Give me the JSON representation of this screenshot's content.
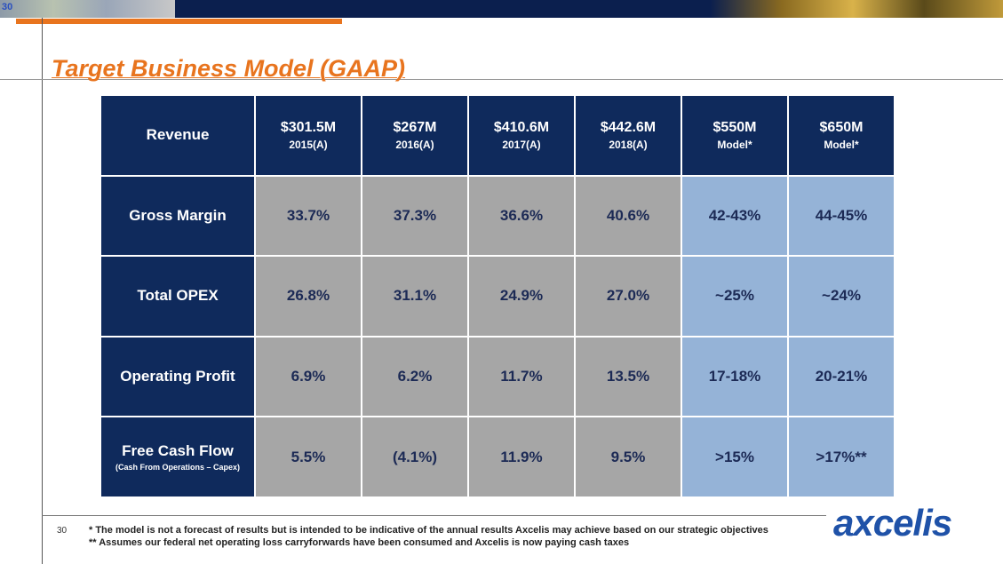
{
  "corner_number": "30",
  "title": "Target Business Model (GAAP)",
  "table": {
    "header": {
      "label": "Revenue",
      "columns": [
        {
          "value": "$301.5M",
          "period": "2015(A)"
        },
        {
          "value": "$267M",
          "period": "2016(A)"
        },
        {
          "value": "$410.6M",
          "period": "2017(A)"
        },
        {
          "value": "$442.6M",
          "period": "2018(A)"
        },
        {
          "value": "$550M",
          "period": "Model*"
        },
        {
          "value": "$650M",
          "period": "Model*"
        }
      ]
    },
    "rows": [
      {
        "label": "Gross Margin",
        "cells": [
          "33.7%",
          "37.3%",
          "36.6%",
          "40.6%",
          "42-43%",
          "44-45%"
        ]
      },
      {
        "label": "Total OPEX",
        "cells": [
          "26.8%",
          "31.1%",
          "24.9%",
          "27.0%",
          "~25%",
          "~24%"
        ]
      },
      {
        "label": "Operating Profit",
        "cells": [
          "6.9%",
          "6.2%",
          "11.7%",
          "13.5%",
          "17-18%",
          "20-21%"
        ]
      },
      {
        "label": "Free Cash Flow",
        "sublabel": "(Cash From Operations – Capex)",
        "cells": [
          "5.5%",
          "(4.1%)",
          "11.9%",
          "9.5%",
          ">15%",
          ">17%**"
        ]
      }
    ]
  },
  "page_number": "30",
  "footnotes": [
    "* The model is not a forecast of results but is intended to be indicative of the annual results Axcelis may achieve based on our strategic objectives",
    "** Assumes our federal net operating loss carryforwards have been consumed and Axcelis is now paying cash taxes"
  ],
  "logo": "axcelis"
}
